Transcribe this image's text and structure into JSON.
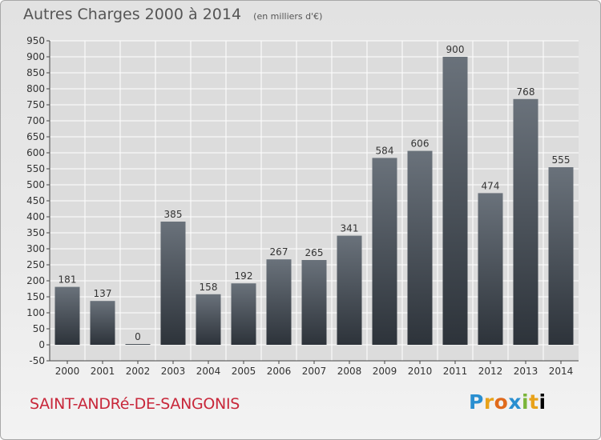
{
  "header": {
    "title": "Autres Charges 2000 à 2014",
    "subtitle": "(en milliers d'€)"
  },
  "footer": {
    "commune": "SAINT-ANDRé-DE-SANGONIS",
    "logo_letters": [
      "P",
      "r",
      "o",
      "x",
      "i",
      "t",
      "i"
    ]
  },
  "colors": {
    "bar_top": "#6a727b",
    "bar_bottom": "#2d333a",
    "commune_text": "#c8273a",
    "grid": "#ffffff"
  },
  "chart_data": {
    "type": "bar",
    "title": "Autres Charges 2000 à 2014",
    "subtitle": "(en milliers d'€)",
    "categories": [
      "2000",
      "2001",
      "2002",
      "2003",
      "2004",
      "2005",
      "2006",
      "2007",
      "2008",
      "2009",
      "2010",
      "2011",
      "2012",
      "2013",
      "2014"
    ],
    "values": [
      181,
      137,
      0,
      385,
      158,
      192,
      267,
      265,
      341,
      584,
      606,
      900,
      474,
      768,
      555
    ],
    "ylim": [
      -50,
      950
    ],
    "yticks": [
      -50,
      0,
      50,
      100,
      150,
      200,
      250,
      300,
      350,
      400,
      450,
      500,
      550,
      600,
      650,
      700,
      750,
      800,
      850,
      900,
      950
    ],
    "grid": true,
    "data_labels": true
  }
}
